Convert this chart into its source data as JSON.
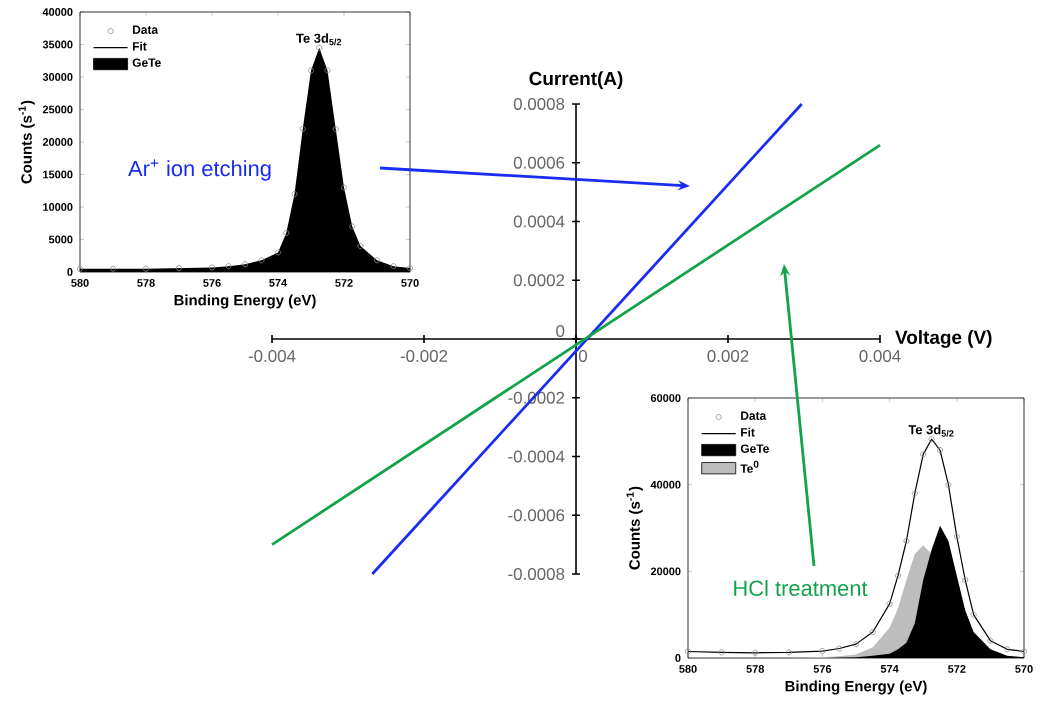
{
  "chart_data": [
    {
      "type": "line",
      "xlabel": "Voltage (V)",
      "ylabel": "Current(A)",
      "xlim": [
        -0.004,
        0.004
      ],
      "ylim": [
        -0.0008,
        0.0008
      ],
      "xticks": [
        -0.004,
        -0.002,
        0,
        0.002,
        0.004
      ],
      "yticks": [
        -0.0008,
        -0.0006,
        -0.0004,
        -0.0002,
        0,
        0.0002,
        0.0004,
        0.0006,
        0.0008
      ],
      "series": [
        {
          "color": "#1a2cf0",
          "x": [
            -0.00268,
            0.00297
          ],
          "values": [
            -0.0008,
            0.0008
          ]
        },
        {
          "color": "#13a34a",
          "x": [
            -0.004,
            0.004
          ],
          "values": [
            -0.0007,
            0.00066
          ]
        }
      ],
      "annotations": [
        "Ar$^{+}$ ion etching",
        "HCl treatment"
      ]
    },
    {
      "type": "line",
      "xlabel": "Binding Energy (eV)",
      "ylabel": "Counts (s$^{-1}$)",
      "xlim": [
        580,
        570
      ],
      "ylim": [
        0,
        40000
      ],
      "xticks": [
        580,
        578,
        576,
        574,
        572,
        570
      ],
      "yticks": [
        0,
        5000,
        10000,
        15000,
        20000,
        25000,
        30000,
        35000,
        40000
      ],
      "x": [
        580,
        579,
        578,
        577,
        576,
        575.5,
        575,
        574.5,
        574,
        573.75,
        573.5,
        573.25,
        573,
        572.75,
        572.5,
        572.25,
        572,
        571.75,
        571.5,
        571,
        570.5,
        570
      ],
      "legend": "top left",
      "series": [
        {
          "name": "Data",
          "type": "scatter",
          "marker": "circle",
          "color": "#8c8c8c",
          "values": [
            500,
            500,
            500,
            600,
            700,
            900,
            1200,
            1800,
            3000,
            6000,
            12000,
            22000,
            31000,
            34500,
            31000,
            22000,
            13000,
            7000,
            4000,
            1800,
            900,
            600
          ]
        },
        {
          "name": "Fit",
          "type": "line",
          "color": "#000000",
          "values": [
            null,
            null,
            null,
            null,
            null,
            null,
            null,
            null,
            null,
            null,
            null,
            null,
            null,
            null,
            null,
            null,
            null,
            null,
            null,
            null,
            null,
            null
          ]
        },
        {
          "name": "GeTe",
          "type": "area",
          "color": "#000000",
          "values": [
            500,
            500,
            500,
            600,
            700,
            900,
            1200,
            1800,
            3000,
            6000,
            12000,
            22000,
            31000,
            34500,
            31000,
            22000,
            13000,
            7000,
            4000,
            1800,
            900,
            600
          ]
        }
      ],
      "annotations": [
        {
          "text": "Te 3d$_{5/2}$",
          "x": 572.75,
          "y": 34500
        }
      ]
    },
    {
      "type": "line",
      "xlabel": "Binding Energy (eV)",
      "ylabel": "Counts (s$^{-1}$)",
      "xlim": [
        580,
        570
      ],
      "ylim": [
        0,
        60000
      ],
      "xticks": [
        580,
        578,
        576,
        574,
        572,
        570
      ],
      "yticks": [
        0,
        20000,
        40000,
        60000
      ],
      "x": [
        580,
        579,
        578,
        577,
        576,
        575.5,
        575,
        574.5,
        574,
        573.75,
        573.5,
        573.25,
        573,
        572.75,
        572.5,
        572.25,
        572,
        571.75,
        571.5,
        571,
        570.5,
        570
      ],
      "legend": "top left",
      "series": [
        {
          "name": "Data",
          "type": "scatter",
          "marker": "circle",
          "color": "#8c8c8c",
          "values": [
            1500,
            1300,
            1200,
            1300,
            1600,
            2200,
            3200,
            6000,
            12500,
            19000,
            27000,
            38000,
            47000,
            50500,
            48000,
            40000,
            28000,
            18000,
            10000,
            4000,
            2000,
            1500
          ]
        },
        {
          "name": "Fit",
          "type": "line",
          "color": "#000000",
          "values": [
            1500,
            1300,
            1200,
            1300,
            1600,
            2200,
            3200,
            6000,
            12500,
            19000,
            27000,
            38000,
            47000,
            50500,
            48000,
            40000,
            28000,
            18000,
            10000,
            4000,
            2000,
            1500
          ]
        },
        {
          "name": "GeTe",
          "type": "area",
          "color": "#000000",
          "values": [
            0,
            0,
            0,
            0,
            0,
            100,
            200,
            500,
            1000,
            2000,
            3500,
            8000,
            18000,
            25000,
            30500,
            27000,
            19000,
            11000,
            6000,
            2000,
            500,
            200
          ]
        },
        {
          "name": "Te$^{0}$",
          "type": "area",
          "color": "#bdbdbd",
          "values": [
            0,
            0,
            0,
            0,
            200,
            400,
            800,
            2500,
            7000,
            11500,
            18000,
            24000,
            26000,
            24000,
            null,
            null,
            null,
            null,
            null,
            null,
            null,
            null
          ]
        }
      ],
      "annotations": [
        {
          "text": "Te 3d$_{5/2}$",
          "x": 572.75,
          "y": 50500
        }
      ]
    }
  ]
}
